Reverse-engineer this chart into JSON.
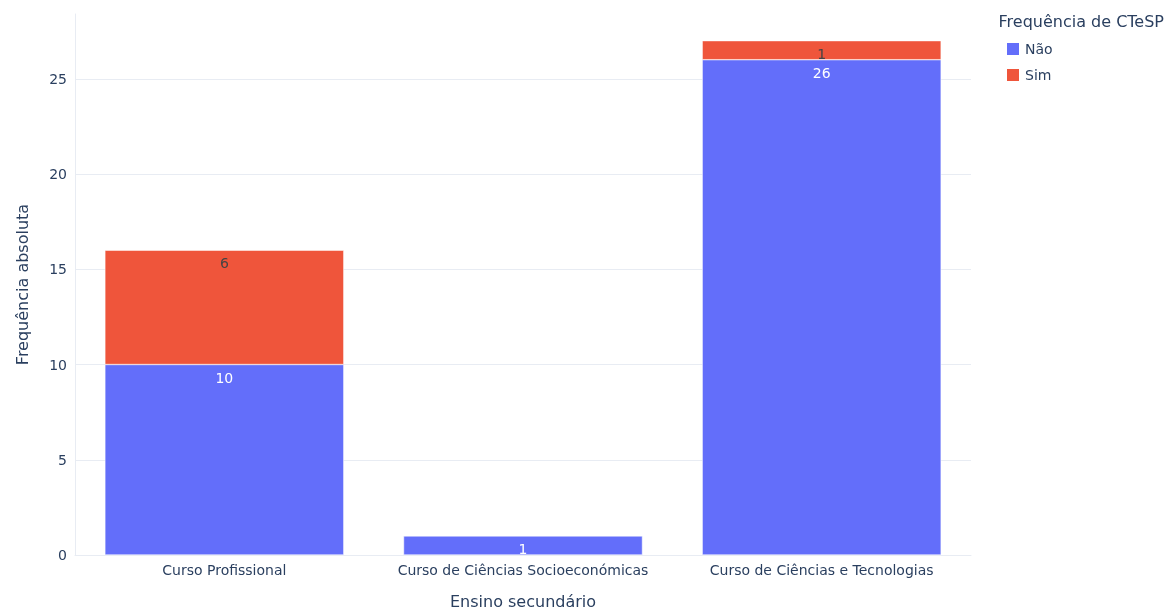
{
  "chart_data": {
    "type": "bar",
    "xlabel": "Ensino secundário",
    "ylabel": "Frequência absoluta",
    "legend_title": "Frequência de CTeSP",
    "categories": [
      "Curso Profissional",
      "Curso de Ciências Socioeconómicas",
      "Curso de Ciências e Tecnologias"
    ],
    "series": [
      {
        "name": "Não",
        "color": "#636efa",
        "values": [
          10,
          1,
          26
        ]
      },
      {
        "name": "Sim",
        "color": "#ef553b",
        "values": [
          6,
          null,
          1
        ]
      }
    ],
    "stacked": true,
    "data_labels": true,
    "ylim": [
      0,
      28.4
    ],
    "yticks": [
      0,
      5,
      10,
      15,
      20,
      25
    ],
    "grid": "y",
    "legend": "top right"
  }
}
